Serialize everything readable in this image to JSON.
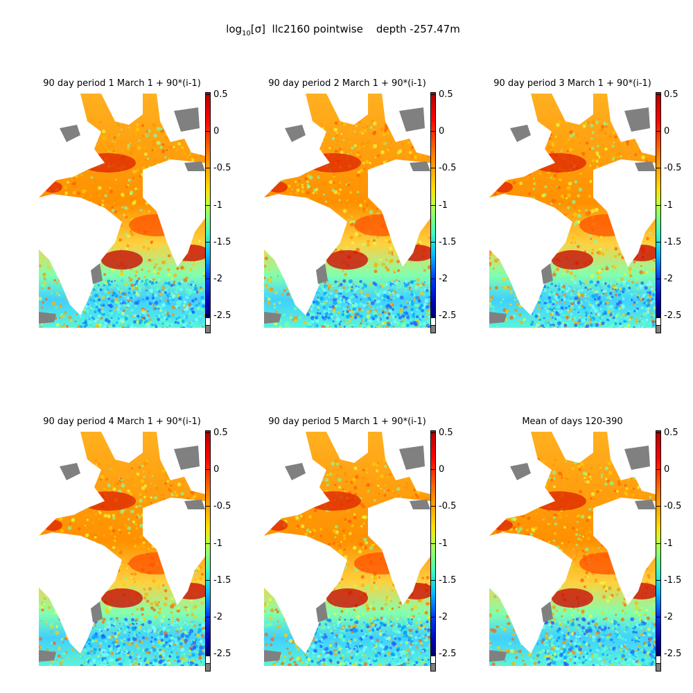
{
  "figure": {
    "title_prefix": "log",
    "title_sub": "10",
    "title_sigma": "[σ]",
    "title_rest": "  llc2160 pointwise    depth -257.47m"
  },
  "panels": [
    {
      "title": "90 day period 1 March 1 + 90*(i-1)"
    },
    {
      "title": "90 day period 2 March 1 + 90*(i-1)"
    },
    {
      "title": "90 day period 3 March 1 + 90*(i-1)"
    },
    {
      "title": "90 day period 4 March 1 + 90*(i-1)"
    },
    {
      "title": "90 day period 5 March 1 + 90*(i-1)"
    },
    {
      "title": "Mean of days 120-390"
    }
  ],
  "colorbar": {
    "ticks": [
      "0.5",
      "0",
      "-0.5",
      "-1",
      "-1.5",
      "-2",
      "-2.5"
    ],
    "tick_values": [
      0.5,
      0,
      -0.5,
      -1,
      -1.5,
      -2,
      -2.5
    ],
    "range": [
      -2.6,
      0.5
    ],
    "colors": {
      "high": "#b00000",
      "mid": "#ffe000",
      "low": "#00006a",
      "land": "#808080",
      "missing": "#ffffff"
    }
  }
}
